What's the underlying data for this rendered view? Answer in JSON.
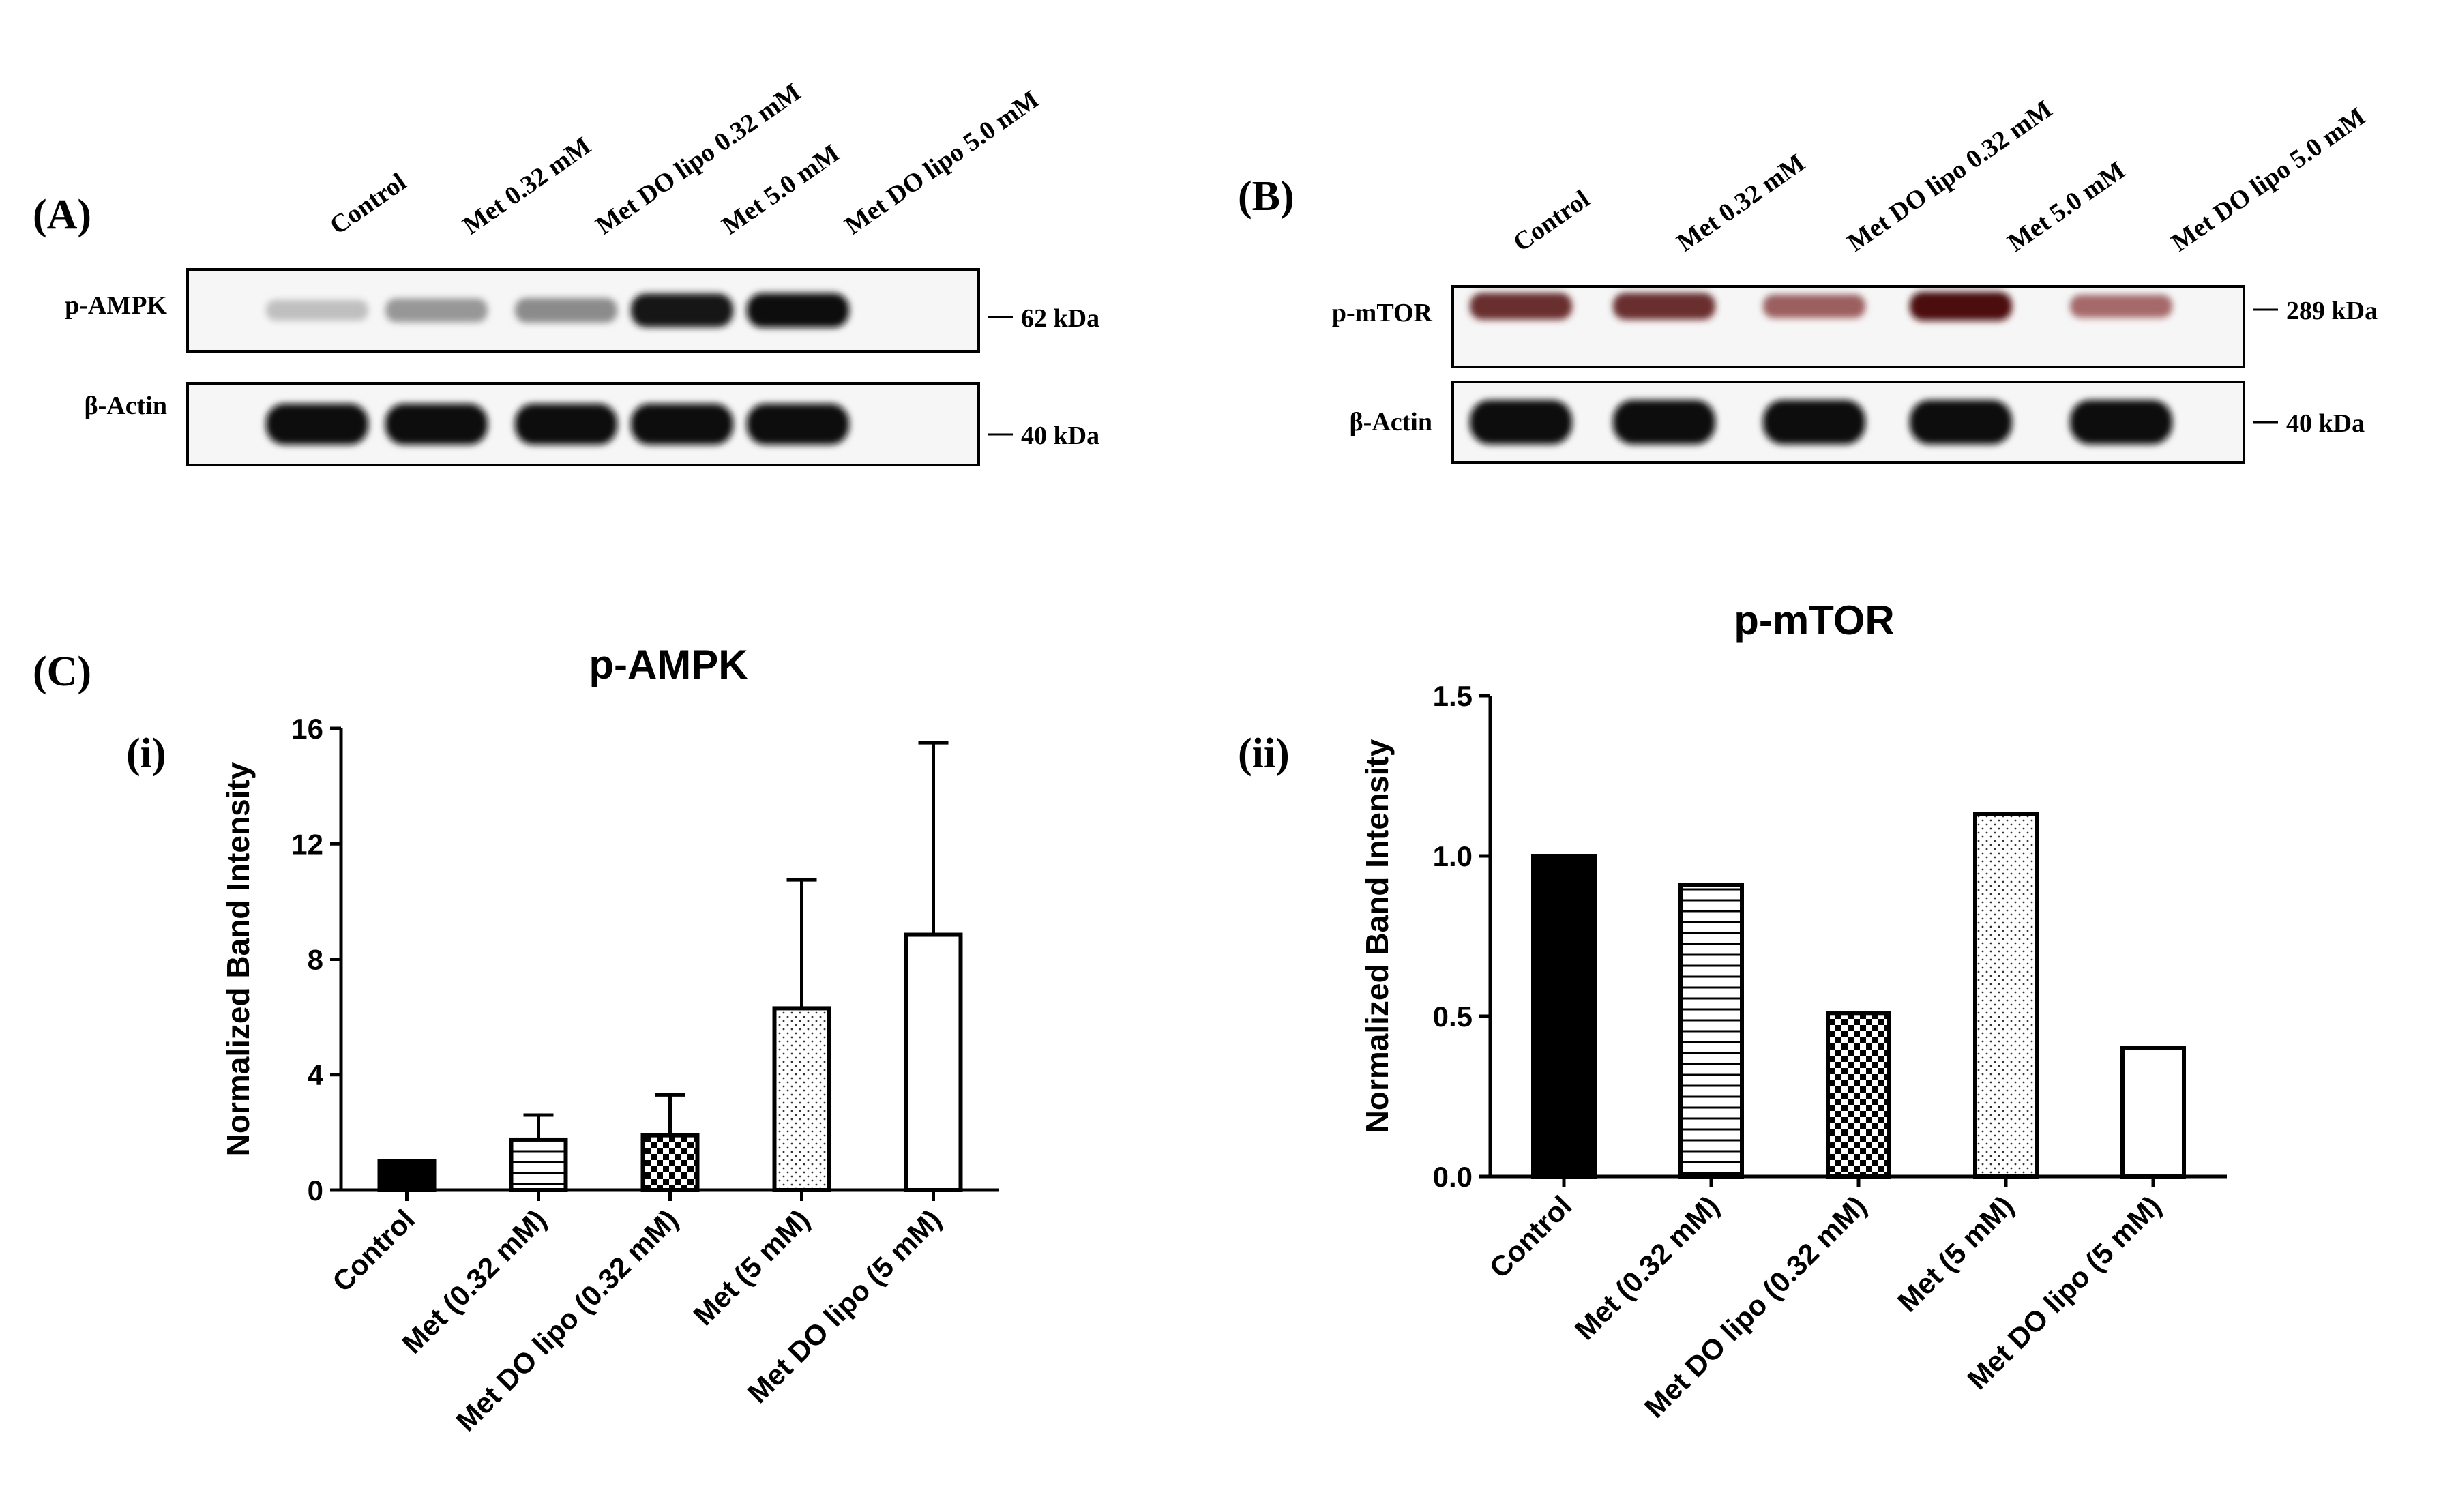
{
  "panel_labels": {
    "A": "(A)",
    "B": "(B)",
    "C": "(C)",
    "i": "(i)",
    "ii": "(ii)"
  },
  "blot_a": {
    "lanes": [
      "Control",
      "Met 0.32 mM",
      "Met DO lipo 0.32 mM",
      "Met 5.0 mM",
      "Met DO lipo 5.0 mM"
    ],
    "rows": [
      {
        "name": "p-AMPK",
        "marker": "62 kDa",
        "intensity": [
          0.12,
          0.32,
          0.38,
          0.95,
          1.0
        ]
      },
      {
        "name": "β-Actin",
        "marker": "40 kDa",
        "intensity": [
          1.0,
          1.0,
          1.0,
          1.0,
          1.0
        ]
      }
    ]
  },
  "blot_b": {
    "lanes": [
      "Control",
      "Met 0.32 mM",
      "Met DO lipo 0.32 mM",
      "Met 5.0 mM",
      "Met DO lipo 5.0 mM"
    ],
    "rows": [
      {
        "name": "p-mTOR",
        "marker": "289 kDa",
        "intensity": [
          0.85,
          0.85,
          0.6,
          1.0,
          0.55
        ]
      },
      {
        "name": "β-Actin",
        "marker": "40 kDa",
        "intensity": [
          1.0,
          1.0,
          1.0,
          1.0,
          1.0
        ]
      }
    ]
  },
  "chart_data": [
    {
      "type": "bar",
      "title": "p-AMPK",
      "ylabel": "Normalized Band Intensity",
      "xlabel": "",
      "categories": [
        "Control",
        "Met (0.32 mM)",
        "Met DO lipo (0.32 mM)",
        "Met (5 mM)",
        "Met DO lipo (5 mM)"
      ],
      "values": [
        1.0,
        1.75,
        1.9,
        6.3,
        8.85
      ],
      "error_upper": [
        0.0,
        2.6,
        3.3,
        10.75,
        15.5
      ],
      "patterns": [
        "solid",
        "hlines",
        "checker",
        "dots",
        "empty"
      ],
      "ylim": [
        0,
        16
      ],
      "yticks": [
        0,
        4,
        8,
        12,
        16
      ],
      "ytick_labels": [
        "0",
        "4",
        "8",
        "12",
        "16"
      ],
      "grid": false,
      "legend": "none"
    },
    {
      "type": "bar",
      "title": "p-mTOR",
      "ylabel": "Normalized Band Intensity",
      "xlabel": "",
      "categories": [
        "Control",
        "Met (0.32 mM)",
        "Met DO lipo (0.32 mM)",
        "Met (5 mM)",
        "Met DO lipo (5 mM)"
      ],
      "values": [
        1.0,
        0.91,
        0.51,
        1.13,
        0.4
      ],
      "patterns": [
        "solid",
        "hlines",
        "checker",
        "dots",
        "empty"
      ],
      "ylim": [
        0,
        1.5
      ],
      "yticks": [
        0,
        0.5,
        1.0,
        1.5
      ],
      "ytick_labels": [
        "0.0",
        "0.5",
        "1.0",
        "1.5"
      ],
      "grid": false,
      "legend": "none"
    }
  ]
}
